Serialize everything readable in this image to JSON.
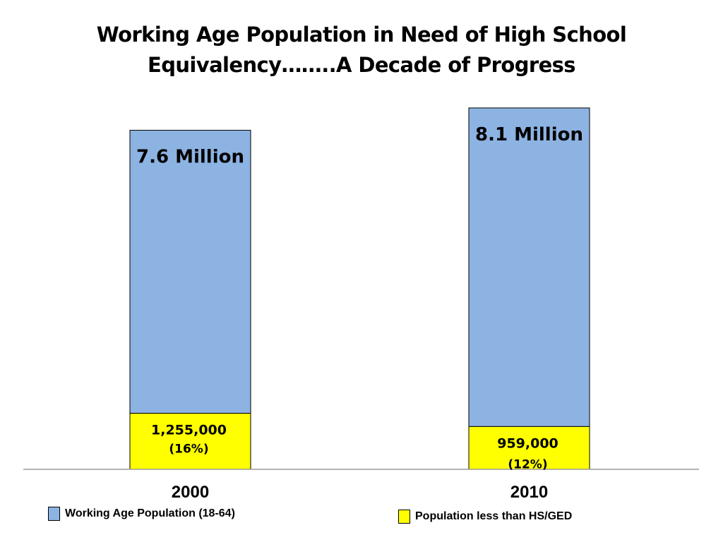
{
  "chart_data": {
    "type": "bar",
    "stacked": true,
    "title_lines": [
      "Working Age Population in Need of High School",
      "Equivalency……..A Decade of Progress"
    ],
    "categories": [
      "2000",
      "2010"
    ],
    "series": [
      {
        "name": "Population less than HS/GED",
        "values": [
          1255000,
          959000
        ],
        "labels": [
          "1,255,000",
          "959,000"
        ],
        "pct_labels": [
          "(16%)",
          "(12%)"
        ],
        "color": "#FFFF00"
      },
      {
        "name": "Working Age Population (18-64)",
        "totals": [
          7600000,
          8100000
        ],
        "total_labels": [
          "7.6 Million",
          "8.1 Million"
        ],
        "color": "#8DB3E2"
      }
    ],
    "ylim": [
      0,
      8700000
    ],
    "grid": false,
    "legend_position": "bottom"
  },
  "legend": {
    "working_label": "Working Age Population (18-64)",
    "working_color": "#8DB3E2",
    "hs_label": "Population less than HS/GED",
    "hs_color": "#FFFF00"
  }
}
